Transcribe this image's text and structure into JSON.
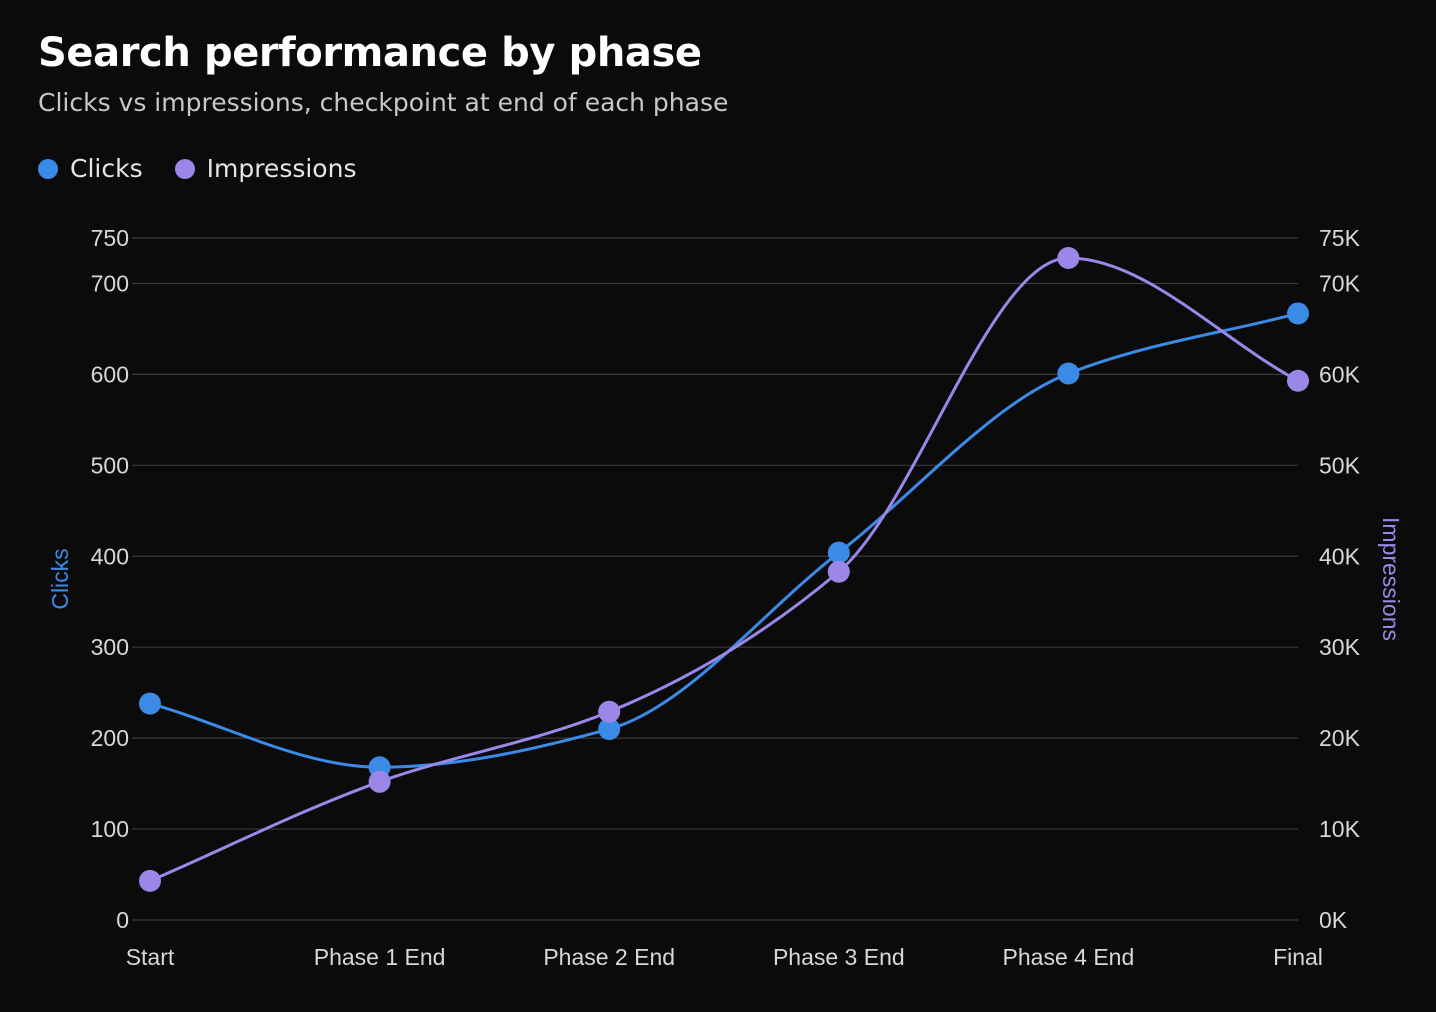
{
  "colors": {
    "background": "#0b0b0c",
    "grid": "#3a3a3f",
    "clicks": "#3b8ae6",
    "impressions": "#9b87e8"
  },
  "chart_data": {
    "type": "line",
    "title": "Search performance by phase",
    "subtitle": "Clicks vs impressions, checkpoint at end of each phase",
    "categories": [
      "Start",
      "Phase 1 End",
      "Phase 2 End",
      "Phase 3 End",
      "Phase 4 End",
      "Final"
    ],
    "series": [
      {
        "name": "Clicks",
        "axis": "left",
        "color": "#3b8ae6",
        "values": [
          238,
          168,
          210,
          404,
          601,
          667
        ]
      },
      {
        "name": "Impressions",
        "axis": "right",
        "color": "#9b87e8",
        "values": [
          4300,
          15200,
          22900,
          38300,
          72800,
          59300
        ]
      }
    ],
    "y_left": {
      "label": "Clicks",
      "range": [
        0,
        750
      ],
      "ticks": [
        0,
        100,
        200,
        300,
        400,
        500,
        600,
        700,
        750
      ],
      "tick_labels": [
        "0",
        "100",
        "200",
        "300",
        "400",
        "500",
        "600",
        "700",
        "750"
      ]
    },
    "y_right": {
      "label": "Impressions",
      "range": [
        0,
        75000
      ],
      "ticks": [
        0,
        10000,
        20000,
        30000,
        40000,
        50000,
        60000,
        70000,
        75000
      ],
      "tick_labels": [
        "0K",
        "10K",
        "20K",
        "30K",
        "40K",
        "50K",
        "60K",
        "70K",
        "75K"
      ]
    },
    "grid": true,
    "legend": "top-left",
    "curve": "smooth"
  }
}
